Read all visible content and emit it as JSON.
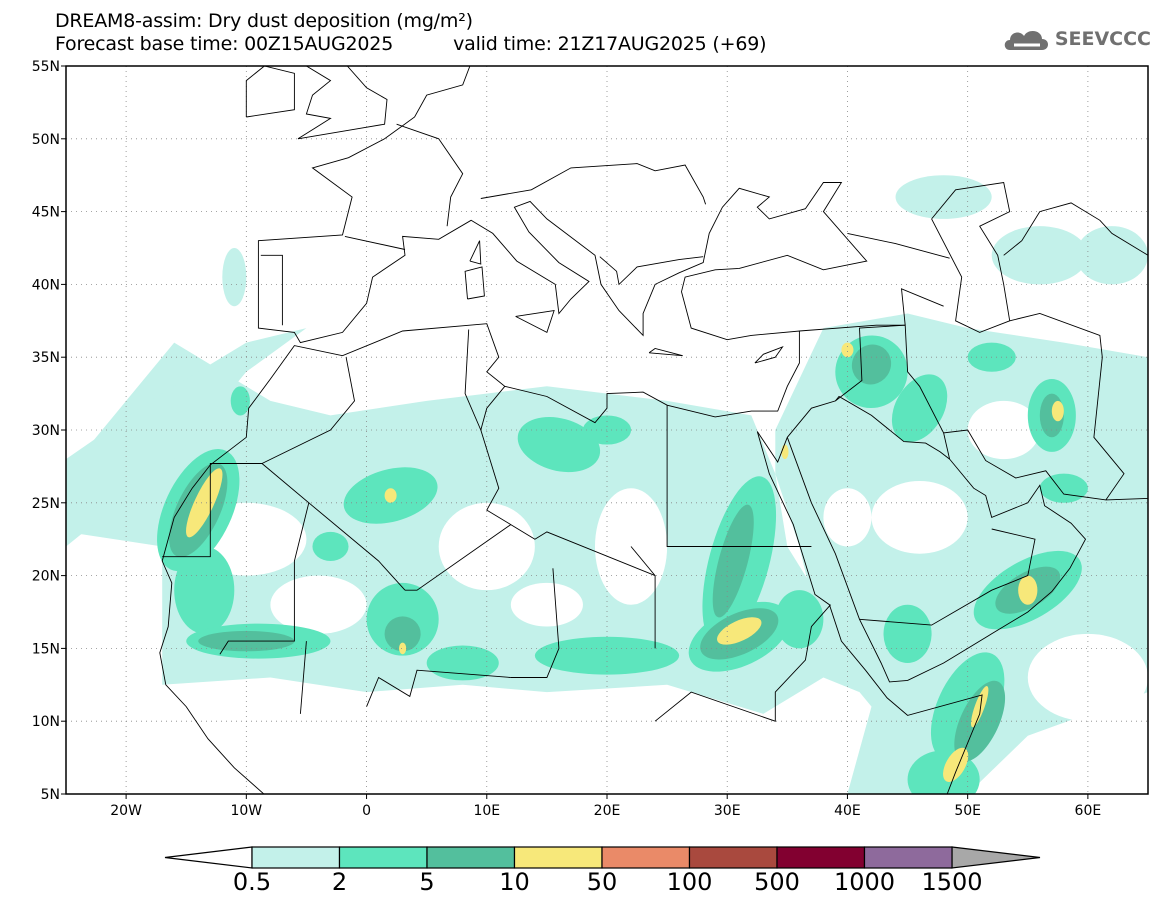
{
  "title": {
    "line1": "DREAM8-assim: Dry dust deposition (mg/m²)",
    "base_time": "Forecast base time: 00Z15AUG2025",
    "valid_time": "valid time: 21Z17AUG2025 (+69)"
  },
  "logo": {
    "text": "SEEVCCC",
    "icon": "cloud-icon"
  },
  "map": {
    "lon_range": [
      -25,
      65
    ],
    "lat_range": [
      5,
      55
    ],
    "lat_labels": [
      "5N",
      "10N",
      "15N",
      "20N",
      "25N",
      "30N",
      "35N",
      "40N",
      "45N",
      "50N",
      "55N"
    ],
    "lat_values": [
      5,
      10,
      15,
      20,
      25,
      30,
      35,
      40,
      45,
      50,
      55
    ],
    "lon_labels": [
      "20W",
      "10W",
      "0",
      "10E",
      "20E",
      "30E",
      "40E",
      "50E",
      "60E"
    ],
    "lon_values": [
      -20,
      -10,
      0,
      10,
      20,
      30,
      40,
      50,
      60
    ]
  },
  "colorbar": {
    "labels": [
      "0.5",
      "2",
      "5",
      "10",
      "50",
      "100",
      "500",
      "1000",
      "1500"
    ],
    "colors": [
      "#c3f1ea",
      "#5de5bd",
      "#53bf9d",
      "#f7e87a",
      "#ea8a68",
      "#a9493e",
      "#820030",
      "#8e6a9c"
    ],
    "under_color": "#ffffff",
    "over_color": "#a8a8a8"
  }
}
